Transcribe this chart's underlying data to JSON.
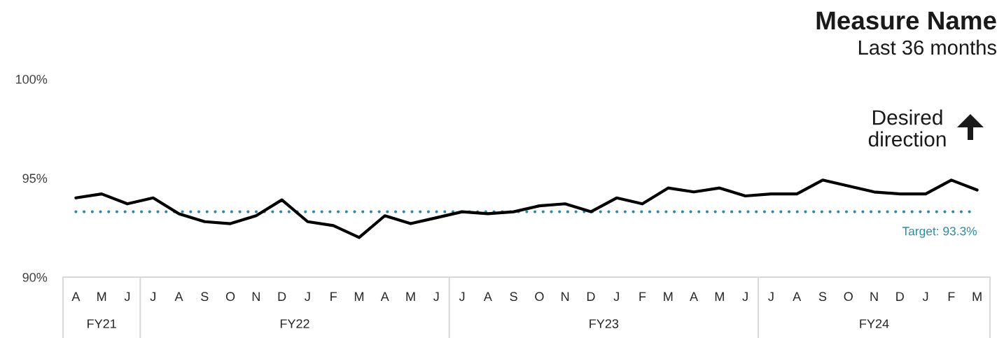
{
  "chart_data": {
    "type": "line",
    "title": "Measure Name",
    "subtitle": "Last 36 months",
    "categories": [
      "A",
      "M",
      "J",
      "J",
      "A",
      "S",
      "O",
      "N",
      "D",
      "J",
      "F",
      "M",
      "A",
      "M",
      "J",
      "J",
      "A",
      "S",
      "O",
      "N",
      "D",
      "J",
      "F",
      "M",
      "A",
      "M",
      "J",
      "J",
      "A",
      "S",
      "O",
      "N",
      "D",
      "J",
      "F",
      "M"
    ],
    "series": [
      {
        "color": "#000000",
        "values": [
          94.0,
          94.2,
          93.7,
          94.0,
          93.2,
          92.8,
          92.7,
          93.1,
          93.9,
          92.8,
          92.6,
          92.0,
          93.1,
          92.7,
          93.0,
          93.3,
          93.2,
          93.3,
          93.6,
          93.7,
          93.3,
          94.0,
          93.7,
          94.5,
          94.3,
          94.5,
          94.1,
          94.2,
          94.2,
          94.9,
          94.6,
          94.3,
          94.2,
          94.2,
          94.9,
          94.4
        ]
      }
    ],
    "ylim": [
      90,
      100
    ],
    "yticks": [
      {
        "value": 90,
        "label": "90%"
      },
      {
        "value": 95,
        "label": "95%"
      },
      {
        "value": 100,
        "label": "100%"
      }
    ],
    "ref_lines": [
      {
        "axis": "y",
        "value": 93.3,
        "label": "Target: 93.3%",
        "color": "#2b8ca4",
        "line_style": "dotted"
      }
    ],
    "annotations": [
      "Desired\ndirection",
      "FY21",
      "FY22",
      "FY23",
      "FY24"
    ],
    "line_style": "solid"
  }
}
